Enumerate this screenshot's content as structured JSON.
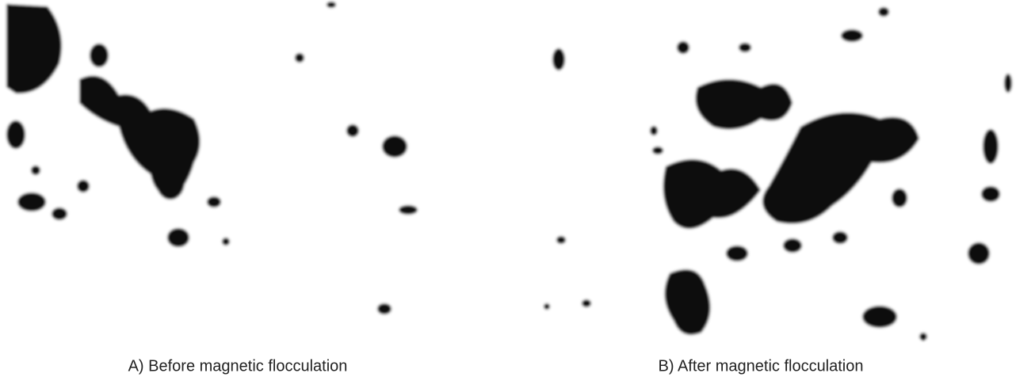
{
  "panels": [
    {
      "caption": "A) Before magnetic flocculation"
    },
    {
      "caption": "B) After magnetic flocculation"
    }
  ]
}
